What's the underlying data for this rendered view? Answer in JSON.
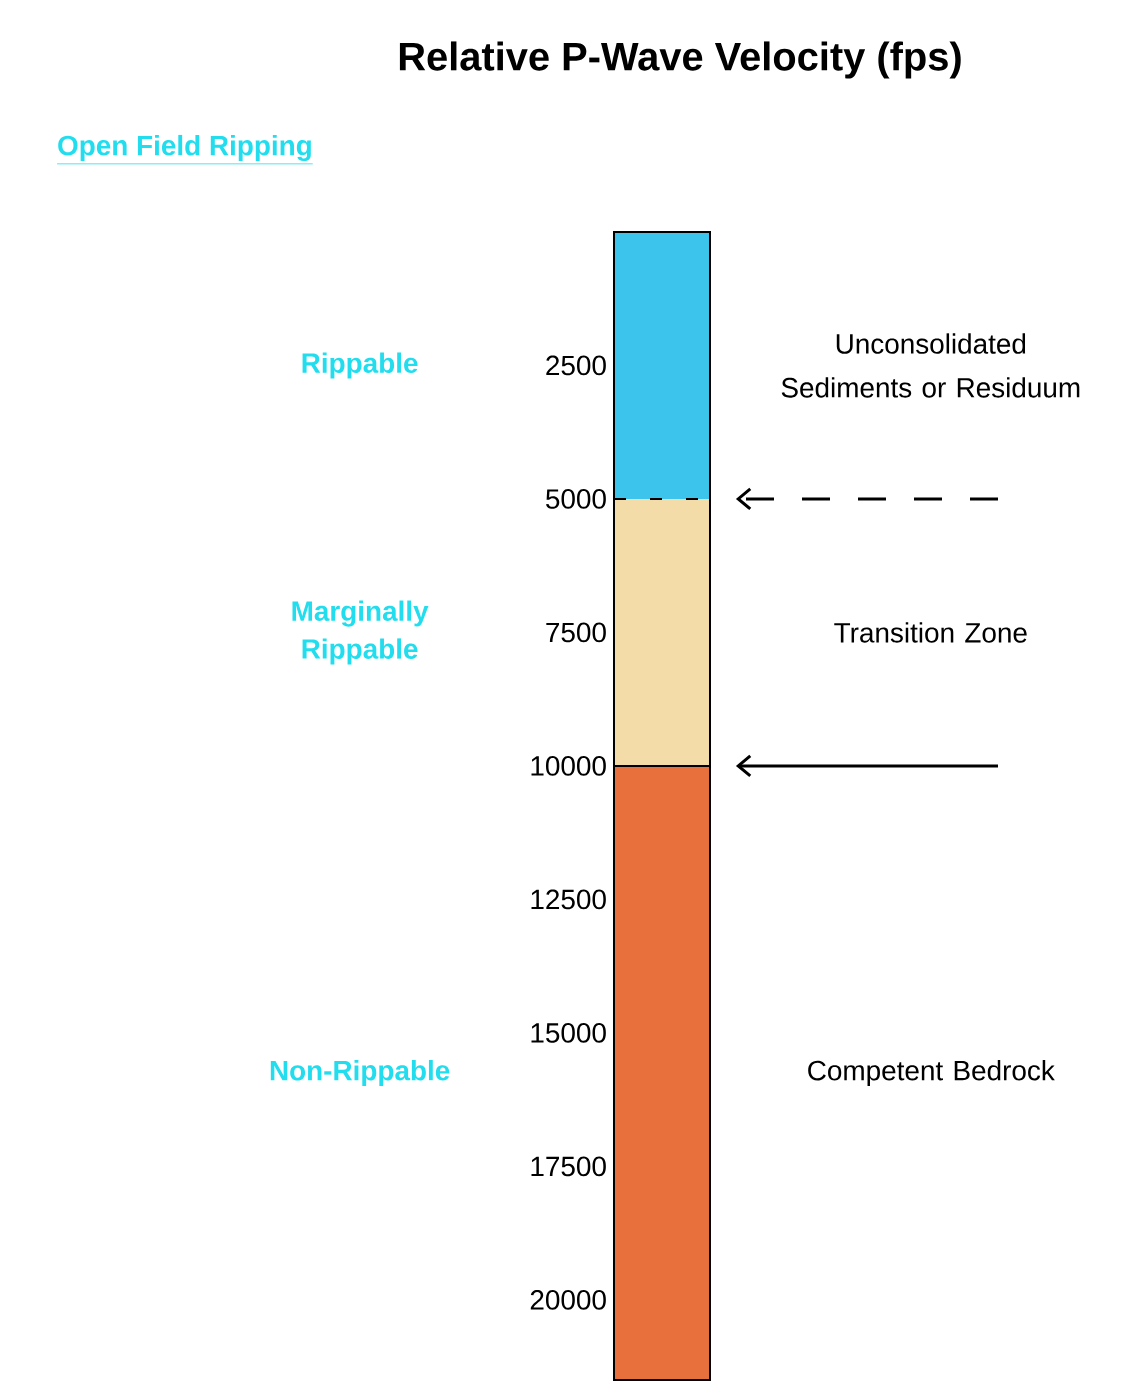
{
  "chart_data": {
    "type": "bar",
    "stacked": true,
    "title": "Relative P-Wave Velocity (fps)",
    "subtitle": "Open Field Ripping",
    "categories": [
      null
    ],
    "ylim": [
      21500,
      0
    ],
    "yticks": [
      2500,
      5000,
      7500,
      10000,
      12500,
      15000,
      17500,
      20000
    ],
    "series": [
      {
        "color": "#3cc4ec",
        "values": [
          5000
        ]
      },
      {
        "color": "#f4dca8",
        "values": [
          5000
        ]
      },
      {
        "color": "#e8703c",
        "values": [
          11500
        ]
      }
    ],
    "ref_lines": [
      {
        "axis": "y",
        "value": 5000,
        "color": "#000000",
        "line_style": "dashed"
      },
      {
        "axis": "y",
        "value": 10000,
        "color": "#000000",
        "line_style": "solid"
      }
    ],
    "annotations": [
      "Rippable",
      "Marginally Rippable",
      "Non-Rippable",
      "Unconsolidated Sediments or Residuum",
      "Transition Zone",
      "Competent Bedrock"
    ]
  }
}
